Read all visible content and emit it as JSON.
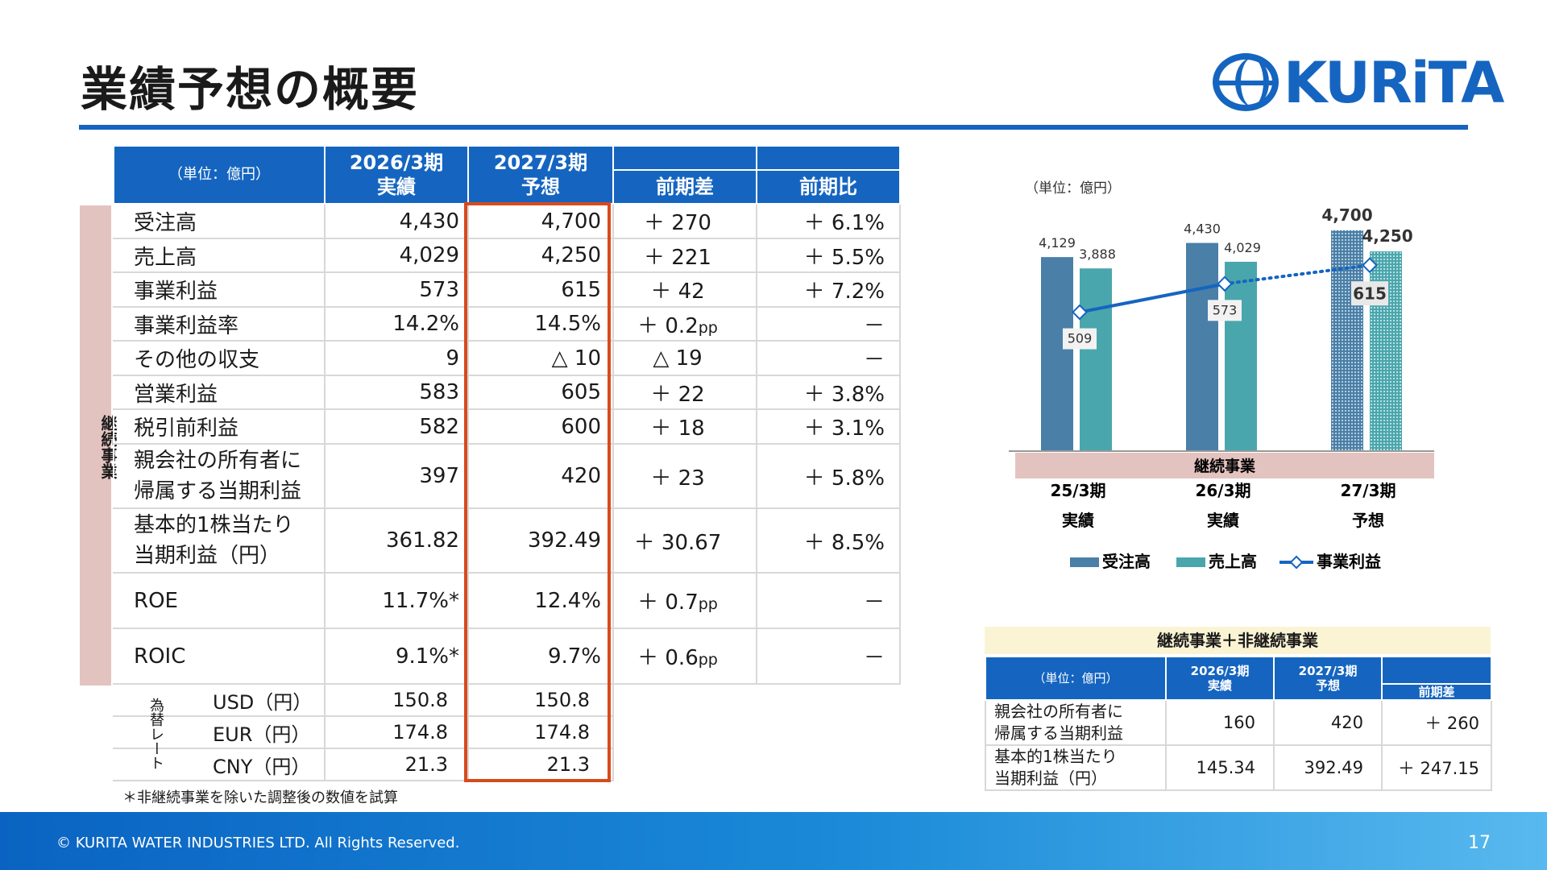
{
  "title": "業績予想の概要",
  "logo": {
    "word": "KURiTA"
  },
  "main_table": {
    "unit": "（単位：億円）",
    "col_2026": "2026/3期",
    "col_2026_sub": "実績",
    "col_2027": "2027/3期",
    "col_2027_sub": "予想",
    "col_diff": "前期差",
    "col_ratio": "前期比",
    "side_label": "継続事業",
    "rows": [
      {
        "label": "受注高",
        "a": "4,430",
        "b": "4,700",
        "diff": "＋ 270",
        "ratio": "＋ 6.1%"
      },
      {
        "label": "売上高",
        "a": "4,029",
        "b": "4,250",
        "diff": "＋ 221",
        "ratio": "＋ 5.5%"
      },
      {
        "label": "事業利益",
        "a": "573",
        "b": "615",
        "diff": "＋ 42",
        "ratio": "＋ 7.2%"
      },
      {
        "label": "事業利益率",
        "a": "14.2%",
        "b": "14.5%",
        "diff": "＋ 0.2",
        "diff_unit": "pp",
        "ratio": "－"
      },
      {
        "label": "その他の収支",
        "a": "9",
        "b": "△ 10",
        "diff": "△ 19",
        "ratio": "－"
      },
      {
        "label": "営業利益",
        "a": "583",
        "b": "605",
        "diff": "＋ 22",
        "ratio": "＋ 3.8%"
      },
      {
        "label": "税引前利益",
        "a": "582",
        "b": "600",
        "diff": "＋ 18",
        "ratio": "＋ 3.1%"
      },
      {
        "label": "親会社の所有者に",
        "label2": "帰属する当期利益",
        "a": "397",
        "b": "420",
        "diff": "＋ 23",
        "ratio": "＋ 5.8%"
      },
      {
        "label": "基本的1株当たり",
        "label2": "当期利益（円）",
        "a": "361.82",
        "b": "392.49",
        "diff": "＋ 30.67",
        "ratio": "＋ 8.5%"
      },
      {
        "label": "ROE",
        "a": "11.7%*",
        "b": "12.4%",
        "diff": "＋ 0.7",
        "diff_unit": "pp",
        "ratio": "－"
      },
      {
        "label": "ROIC",
        "a": "9.1%*",
        "b": "9.7%",
        "diff": "＋ 0.6",
        "diff_unit": "pp",
        "ratio": "－"
      }
    ],
    "fx_label": "為替レート",
    "fx": [
      {
        "label": "USD（円）",
        "a": "150.8",
        "b": "150.8"
      },
      {
        "label": "EUR（円）",
        "a": "174.8",
        "b": "174.8"
      },
      {
        "label": "CNY（円）",
        "a": "21.3",
        "b": "21.3"
      }
    ],
    "note": "＊非継続事業を除いた調整後の数値を試算"
  },
  "chart_unit": "（単位：億円）",
  "chart_data": {
    "type": "bar",
    "categories": [
      "25/3期",
      "26/3期",
      "27/3期"
    ],
    "category_sub": [
      "実績",
      "実績",
      "予想"
    ],
    "group_label": "継続事業",
    "series": [
      {
        "name": "受注高",
        "values": [
          4129,
          4430,
          4700
        ],
        "labels": [
          "4,129",
          "4,430",
          "4,700"
        ],
        "color": "#4a7fa7"
      },
      {
        "name": "売上高",
        "values": [
          3888,
          4029,
          4250
        ],
        "labels": [
          "3,888",
          "4,029",
          "4,250"
        ],
        "color": "#4aa6ad"
      },
      {
        "name": "事業利益",
        "type": "line",
        "values": [
          509,
          573,
          615
        ],
        "labels": [
          "509",
          "573",
          "615"
        ],
        "color": "#1565c0"
      }
    ]
  },
  "small_table": {
    "title": "継続事業＋非継続事業",
    "unit": "（単位：億円）",
    "col_2026": "2026/3期",
    "col_2026_sub": "実績",
    "col_2027": "2027/3期",
    "col_2027_sub": "予想",
    "col_diff": "前期差",
    "rows": [
      {
        "label": "親会社の所有者に",
        "label2": "帰属する当期利益",
        "a": "160",
        "b": "420",
        "diff": "＋ 260"
      },
      {
        "label": "基本的1株当たり",
        "label2": "当期利益（円）",
        "a": "145.34",
        "b": "392.49",
        "diff": "＋ 247.15"
      }
    ]
  },
  "footer": {
    "copyright": "© KURITA WATER INDUSTRIES LTD. All Rights Reserved.",
    "page": "17"
  }
}
